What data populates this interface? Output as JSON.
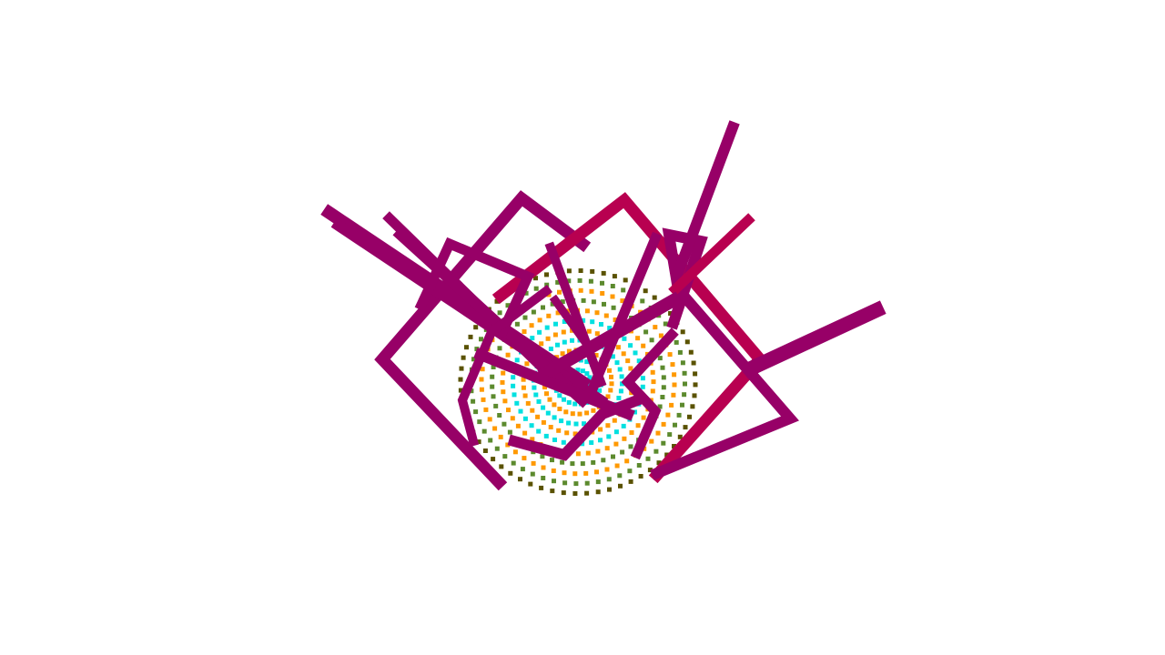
{
  "scene": {
    "background_color": "#ffffff",
    "colors": {
      "magenta_stroke": "#970067",
      "crimson_stroke": "#b80050",
      "dot_cyan": "#00e0e0",
      "dot_orange": "#ff9900",
      "dot_green": "#5c8a2e",
      "dot_olive": "#5a5200"
    },
    "rings": [
      {
        "color": "#00e0e0",
        "dots": 16
      },
      {
        "color": "#00e0e0",
        "dots": 24
      },
      {
        "color": "#ff9900",
        "dots": 30
      },
      {
        "color": "#00e0e0",
        "dots": 36
      },
      {
        "color": "#ff9900",
        "dots": 40
      },
      {
        "color": "#00e0e0",
        "dots": 44
      },
      {
        "color": "#ff9900",
        "dots": 48
      },
      {
        "color": "#5c8a2e",
        "dots": 52
      },
      {
        "color": "#ff9900",
        "dots": 56
      },
      {
        "color": "#5c8a2e",
        "dots": 60
      },
      {
        "color": "#5a5200",
        "dots": 64
      }
    ]
  }
}
